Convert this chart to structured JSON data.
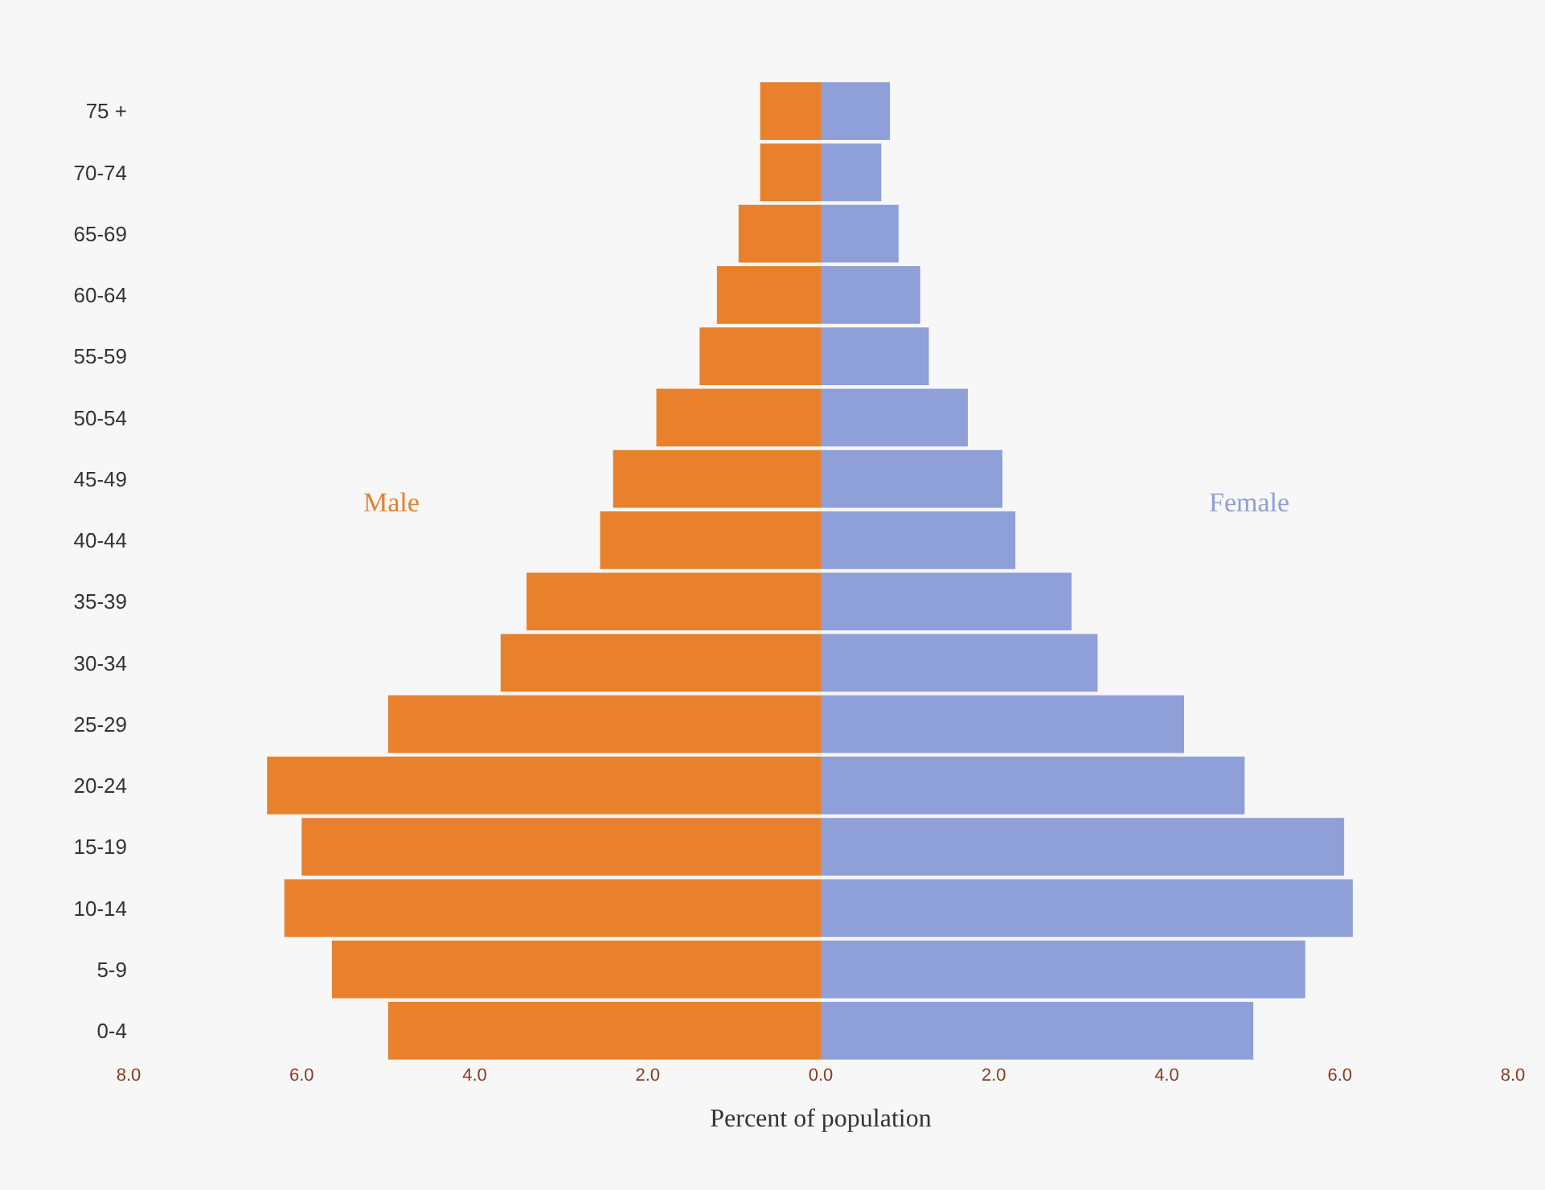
{
  "chart_data": {
    "type": "bar",
    "orientation": "horizontal",
    "xlabel": "Percent of population",
    "categories": [
      "75 +",
      "70-74",
      "65-69",
      "60-64",
      "55-59",
      "50-54",
      "45-49",
      "40-44",
      "35-39",
      "30-34",
      "25-29",
      "20-24",
      "15-19",
      "10-14",
      "5-9",
      "0-4"
    ],
    "series": [
      {
        "name": "Male",
        "color": "#e8802c",
        "values": [
          -0.7,
          -0.7,
          -0.95,
          -1.2,
          -1.4,
          -1.9,
          -2.4,
          -2.55,
          -3.4,
          -3.7,
          -5.0,
          -6.4,
          -6.0,
          -6.2,
          -5.65,
          -5.0
        ]
      },
      {
        "name": "Female",
        "color": "#8f9fd8",
        "values": [
          0.8,
          0.7,
          0.9,
          1.15,
          1.25,
          1.7,
          2.1,
          2.25,
          2.9,
          3.2,
          4.2,
          4.9,
          6.05,
          6.15,
          5.6,
          5.0
        ]
      }
    ],
    "xlim": [
      -8,
      8
    ],
    "xticks": [
      {
        "value": -8,
        "label": "8.0"
      },
      {
        "value": -6,
        "label": "6.0"
      },
      {
        "value": -4,
        "label": "4.0"
      },
      {
        "value": -2,
        "label": "2.0"
      },
      {
        "value": 0,
        "label": "0.0"
      },
      {
        "value": 2,
        "label": "2.0"
      },
      {
        "value": 4,
        "label": "4.0"
      },
      {
        "value": 6,
        "label": "6.0"
      },
      {
        "value": 8,
        "label": "8.0"
      }
    ],
    "stacked": true,
    "grid": false,
    "legend": false
  }
}
